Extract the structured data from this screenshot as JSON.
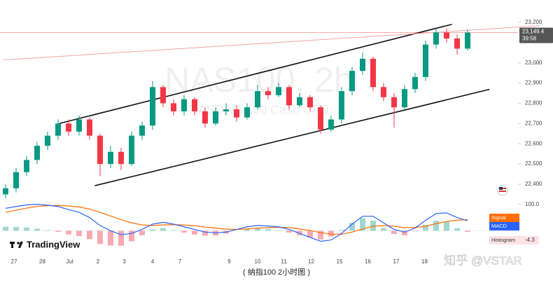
{
  "chart_data": {
    "type": "candlestick",
    "watermark_title": "NAS100, 2h",
    "watermark_subtitle": "NASDAQ 100 Cash CFD",
    "logo": "TradingView",
    "caption": "( 纳指100 2小时图 )",
    "credit": "知乎 @VSTAR",
    "up_color": "#089981",
    "down_color": "#f23645",
    "candles": {
      "open": [
        22350,
        22380,
        22460,
        22520,
        22590,
        22640,
        22700,
        22660,
        22720,
        22640,
        22500,
        22560,
        22500,
        22640,
        22690,
        22880,
        22800,
        22760,
        22820,
        22760,
        22700,
        22760,
        22770,
        22730,
        22780,
        22860,
        22840,
        22880,
        22790,
        22830,
        22780,
        22670,
        22720,
        22860,
        22960,
        23020,
        22880,
        22830,
        22780,
        22870,
        22930,
        23090,
        23150,
        23120,
        23070
      ],
      "high": [
        22400,
        22480,
        22540,
        22610,
        22660,
        22720,
        22720,
        22740,
        22730,
        22650,
        22590,
        22580,
        22660,
        22710,
        22910,
        22890,
        22820,
        22840,
        22830,
        22780,
        22780,
        22800,
        22790,
        22800,
        22890,
        22880,
        22900,
        22890,
        22850,
        22840,
        22790,
        22740,
        22880,
        22980,
        23050,
        23030,
        22900,
        22850,
        22890,
        22950,
        23110,
        23170,
        23170,
        23140,
        23165
      ],
      "low": [
        22330,
        22360,
        22440,
        22500,
        22570,
        22620,
        22640,
        22640,
        22620,
        22440,
        22480,
        22470,
        22490,
        22620,
        22670,
        22780,
        22740,
        22740,
        22740,
        22680,
        22690,
        22740,
        22710,
        22720,
        22770,
        22820,
        22830,
        22770,
        22780,
        22760,
        22650,
        22660,
        22700,
        22840,
        22940,
        22860,
        22810,
        22680,
        22770,
        22850,
        22910,
        23070,
        23100,
        23040,
        23060
      ],
      "close": [
        22380,
        22460,
        22520,
        22590,
        22640,
        22700,
        22660,
        22720,
        22640,
        22500,
        22560,
        22500,
        22640,
        22690,
        22880,
        22800,
        22760,
        22820,
        22760,
        22700,
        22760,
        22770,
        22730,
        22780,
        22860,
        22840,
        22880,
        22790,
        22830,
        22780,
        22670,
        22720,
        22860,
        22960,
        23020,
        22880,
        22830,
        22780,
        22870,
        22930,
        23090,
        23150,
        23120,
        23070,
        23149.4
      ]
    },
    "last_price": {
      "value": 23149.4,
      "label": "23,149.4",
      "color": "#f7a7a7"
    },
    "countdown": "39:58",
    "ylim": [
      22324,
      23241
    ],
    "yticks": [
      {
        "value": 22400,
        "label": "22,400"
      },
      {
        "value": 22500,
        "label": "22,500"
      },
      {
        "value": 22600,
        "label": "22,600"
      },
      {
        "value": 22700,
        "label": "22,700"
      },
      {
        "value": 22800,
        "label": "22,800"
      },
      {
        "value": 22900,
        "label": "22,900"
      },
      {
        "value": 23000,
        "label": "23,000"
      },
      {
        "value": 23200,
        "label": "23,200"
      }
    ],
    "xticks": [
      {
        "value": 0.8,
        "label": "27"
      },
      {
        "value": 3.5,
        "label": "28"
      },
      {
        "value": 6.1,
        "label": "Jul"
      },
      {
        "value": 8.8,
        "label": "2"
      },
      {
        "value": 11.3,
        "label": "3"
      },
      {
        "value": 14,
        "label": "4"
      },
      {
        "value": 16.6,
        "label": "7"
      },
      {
        "value": 21.3,
        "label": "9"
      },
      {
        "value": 24,
        "label": "10"
      },
      {
        "value": 26.5,
        "label": "11"
      },
      {
        "value": 29.1,
        "label": "12"
      },
      {
        "value": 31.8,
        "label": "15"
      },
      {
        "value": 34.5,
        "label": "16"
      },
      {
        "value": 37.2,
        "label": "17"
      },
      {
        "value": 39.9,
        "label": "18"
      }
    ],
    "trendlines": [
      {
        "color": "#111111",
        "points": [
          [
            5.1,
            22700
          ],
          [
            42.5,
            23190
          ]
        ]
      },
      {
        "color": "#111111",
        "points": [
          [
            8.5,
            22393
          ],
          [
            46.1,
            22869
          ]
        ]
      },
      {
        "color": "#f4a3a3",
        "points": [
          [
            -0.2,
            23014
          ],
          [
            50.8,
            23183
          ]
        ]
      }
    ],
    "macd_panel": {
      "ylim": [
        -60,
        110
      ],
      "yticks": [
        {
          "value": 100,
          "label": "100.0"
        }
      ],
      "macd": {
        "name": "MACD",
        "color": "#2962ff",
        "values": [
          85,
          92,
          98,
          100,
          97,
          92,
          80,
          70,
          50,
          20,
          0,
          -15,
          -10,
          5,
          25,
          32,
          25,
          15,
          5,
          -5,
          -8,
          -5,
          5,
          15,
          20,
          18,
          15,
          5,
          -10,
          -25,
          -40,
          -35,
          -10,
          25,
          55,
          55,
          30,
          5,
          -5,
          10,
          40,
          65,
          68,
          50,
          37.9
        ]
      },
      "signal": {
        "name": "Signal",
        "color": "#ff6d00",
        "values": [
          70,
          78,
          86,
          92,
          95,
          96,
          94,
          90,
          82,
          70,
          56,
          42,
          30,
          22,
          20,
          22,
          23,
          22,
          19,
          14,
          10,
          6,
          5,
          7,
          10,
          12,
          13,
          12,
          7,
          1,
          -7,
          -13,
          -13,
          -5,
          7,
          17,
          20,
          17,
          12,
          12,
          17,
          27,
          35,
          40,
          42.2
        ]
      },
      "histogram": {
        "name": "Histogram",
        "up_color": "#9fd8cf",
        "down_color": "#f7a9b0",
        "values": [
          15,
          14,
          12,
          8,
          2,
          -4,
          -14,
          -20,
          -32,
          -50,
          -56,
          -57,
          -40,
          -17,
          5,
          10,
          2,
          -7,
          -14,
          -19,
          -18,
          -11,
          0,
          8,
          10,
          6,
          2,
          -7,
          -17,
          -26,
          -33,
          -22,
          3,
          30,
          48,
          38,
          10,
          -12,
          -17,
          -2,
          23,
          38,
          33,
          10,
          -4.3
        ]
      }
    }
  }
}
